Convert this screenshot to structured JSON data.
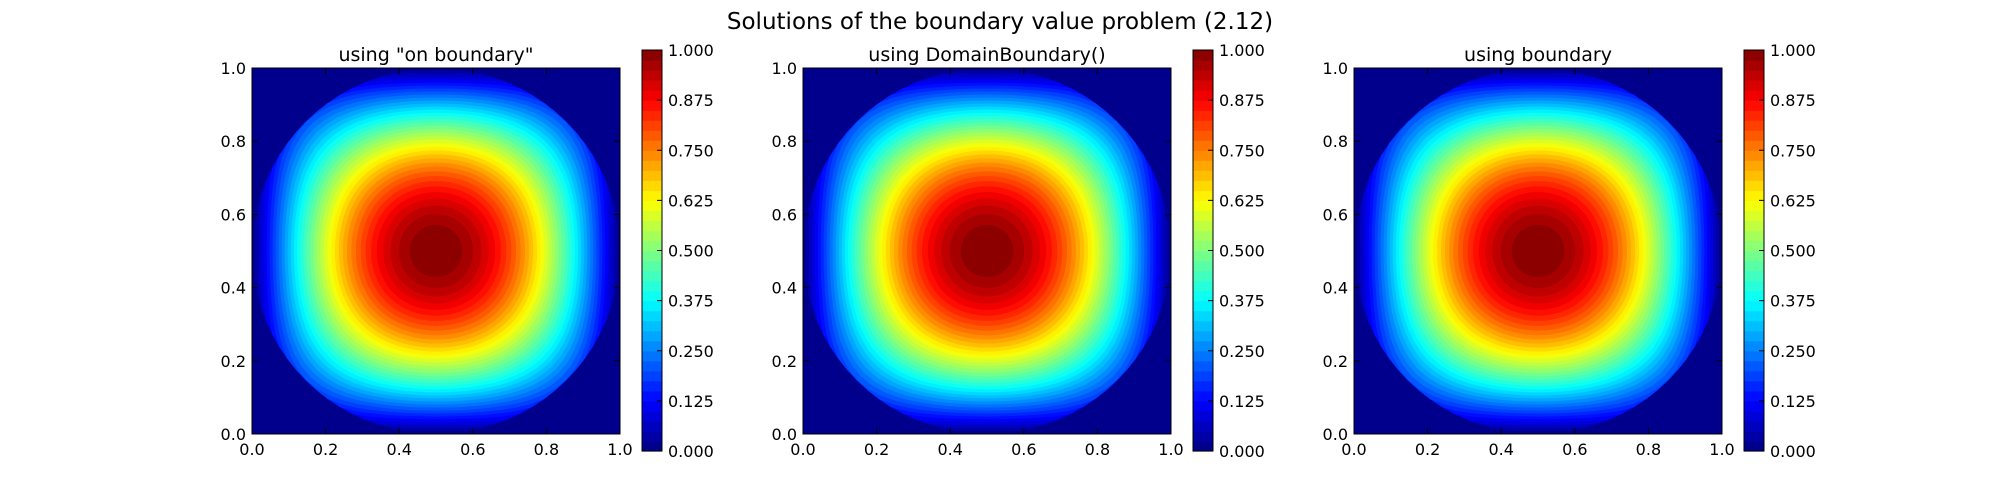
{
  "suptitle": "Solutions of the boundary value problem (2.12)",
  "chart_data": [
    {
      "type": "heatmap",
      "title": "using \"on boundary\"",
      "function": "sin(pi*x)*sin(pi*y)",
      "levels": 40,
      "x_range": [
        0.0,
        1.0
      ],
      "y_range": [
        0.0,
        1.0
      ],
      "x_ticks": [
        "0.0",
        "0.2",
        "0.4",
        "0.6",
        "0.8",
        "1.0"
      ],
      "y_ticks": [
        "0.0",
        "0.2",
        "0.4",
        "0.6",
        "0.8",
        "1.0"
      ],
      "colorbar": {
        "range": [
          0.0,
          1.0
        ],
        "ticks": [
          "0.000",
          "0.125",
          "0.250",
          "0.375",
          "0.500",
          "0.625",
          "0.750",
          "0.875",
          "1.000"
        ]
      },
      "colormap": "jet",
      "peak": {
        "x": 0.5,
        "y": 0.5,
        "value": 1.0
      }
    },
    {
      "type": "heatmap",
      "title": "using DomainBoundary()",
      "function": "sin(pi*x)*sin(pi*y)",
      "levels": 40,
      "x_range": [
        0.0,
        1.0
      ],
      "y_range": [
        0.0,
        1.0
      ],
      "x_ticks": [
        "0.0",
        "0.2",
        "0.4",
        "0.6",
        "0.8",
        "1.0"
      ],
      "y_ticks": [
        "0.0",
        "0.2",
        "0.4",
        "0.6",
        "0.8",
        "1.0"
      ],
      "colorbar": {
        "range": [
          0.0,
          1.0
        ],
        "ticks": [
          "0.000",
          "0.125",
          "0.250",
          "0.375",
          "0.500",
          "0.625",
          "0.750",
          "0.875",
          "1.000"
        ]
      },
      "colormap": "jet",
      "peak": {
        "x": 0.5,
        "y": 0.5,
        "value": 1.0
      }
    },
    {
      "type": "heatmap",
      "title": "using boundary",
      "function": "sin(pi*x)*sin(pi*y)",
      "levels": 40,
      "x_range": [
        0.0,
        1.0
      ],
      "y_range": [
        0.0,
        1.0
      ],
      "x_ticks": [
        "0.0",
        "0.2",
        "0.4",
        "0.6",
        "0.8",
        "1.0"
      ],
      "y_ticks": [
        "0.0",
        "0.2",
        "0.4",
        "0.6",
        "0.8",
        "1.0"
      ],
      "colorbar": {
        "range": [
          0.0,
          1.0
        ],
        "ticks": [
          "0.000",
          "0.125",
          "0.250",
          "0.375",
          "0.500",
          "0.625",
          "0.750",
          "0.875",
          "1.000"
        ]
      },
      "colormap": "jet",
      "peak": {
        "x": 0.5,
        "y": 0.5,
        "value": 1.0
      }
    }
  ]
}
